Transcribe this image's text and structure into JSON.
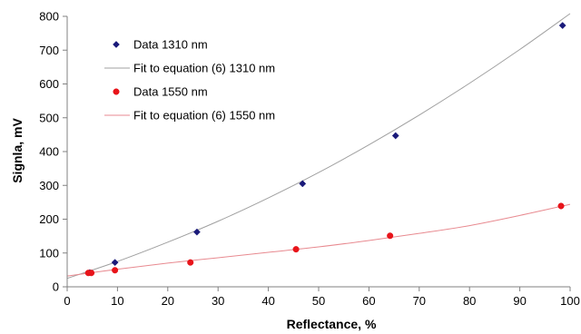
{
  "chart_data": {
    "type": "scatter",
    "xlabel": "Reflectance, %",
    "ylabel": "Signla, mV",
    "xlim": [
      0,
      100
    ],
    "ylim": [
      0,
      800
    ],
    "x_ticks": [
      0,
      10,
      20,
      30,
      40,
      50,
      60,
      70,
      80,
      90,
      100
    ],
    "y_ticks": [
      0,
      100,
      200,
      300,
      400,
      500,
      600,
      700,
      800
    ],
    "grid": false,
    "legend_position": "top-left",
    "series": [
      {
        "name": "Data 1310 nm",
        "kind": "markers",
        "marker": "diamond",
        "color": "#1a1a7a",
        "x": [
          4.5,
          9.5,
          25.8,
          46.8,
          65.3,
          98.5
        ],
        "y": [
          42,
          72,
          162,
          305,
          447,
          773
        ]
      },
      {
        "name": "Fit to equation (6) 1310 nm",
        "kind": "line",
        "color": "#a0a0a0",
        "x": [
          0,
          10,
          20,
          30,
          40,
          50,
          60,
          70,
          80,
          90,
          100
        ],
        "y": [
          25,
          75,
          132,
          194,
          263,
          338,
          420,
          508,
          602,
          702,
          808
        ]
      },
      {
        "name": "Data 1550 nm",
        "kind": "markers",
        "marker": "circle",
        "color": "#e8141a",
        "x": [
          4.2,
          4.8,
          9.5,
          24.5,
          45.5,
          64.2,
          98.2
        ],
        "y": [
          41,
          41,
          49,
          72,
          111,
          151,
          239
        ]
      },
      {
        "name": "Fit to equation (6) 1550 nm",
        "kind": "line",
        "color": "#e88a90",
        "x": [
          0,
          10,
          20,
          30,
          40,
          50,
          60,
          70,
          80,
          90,
          100
        ],
        "y": [
          32,
          52,
          70,
          86,
          102,
          118,
          137,
          158,
          181,
          211,
          244
        ]
      }
    ]
  }
}
